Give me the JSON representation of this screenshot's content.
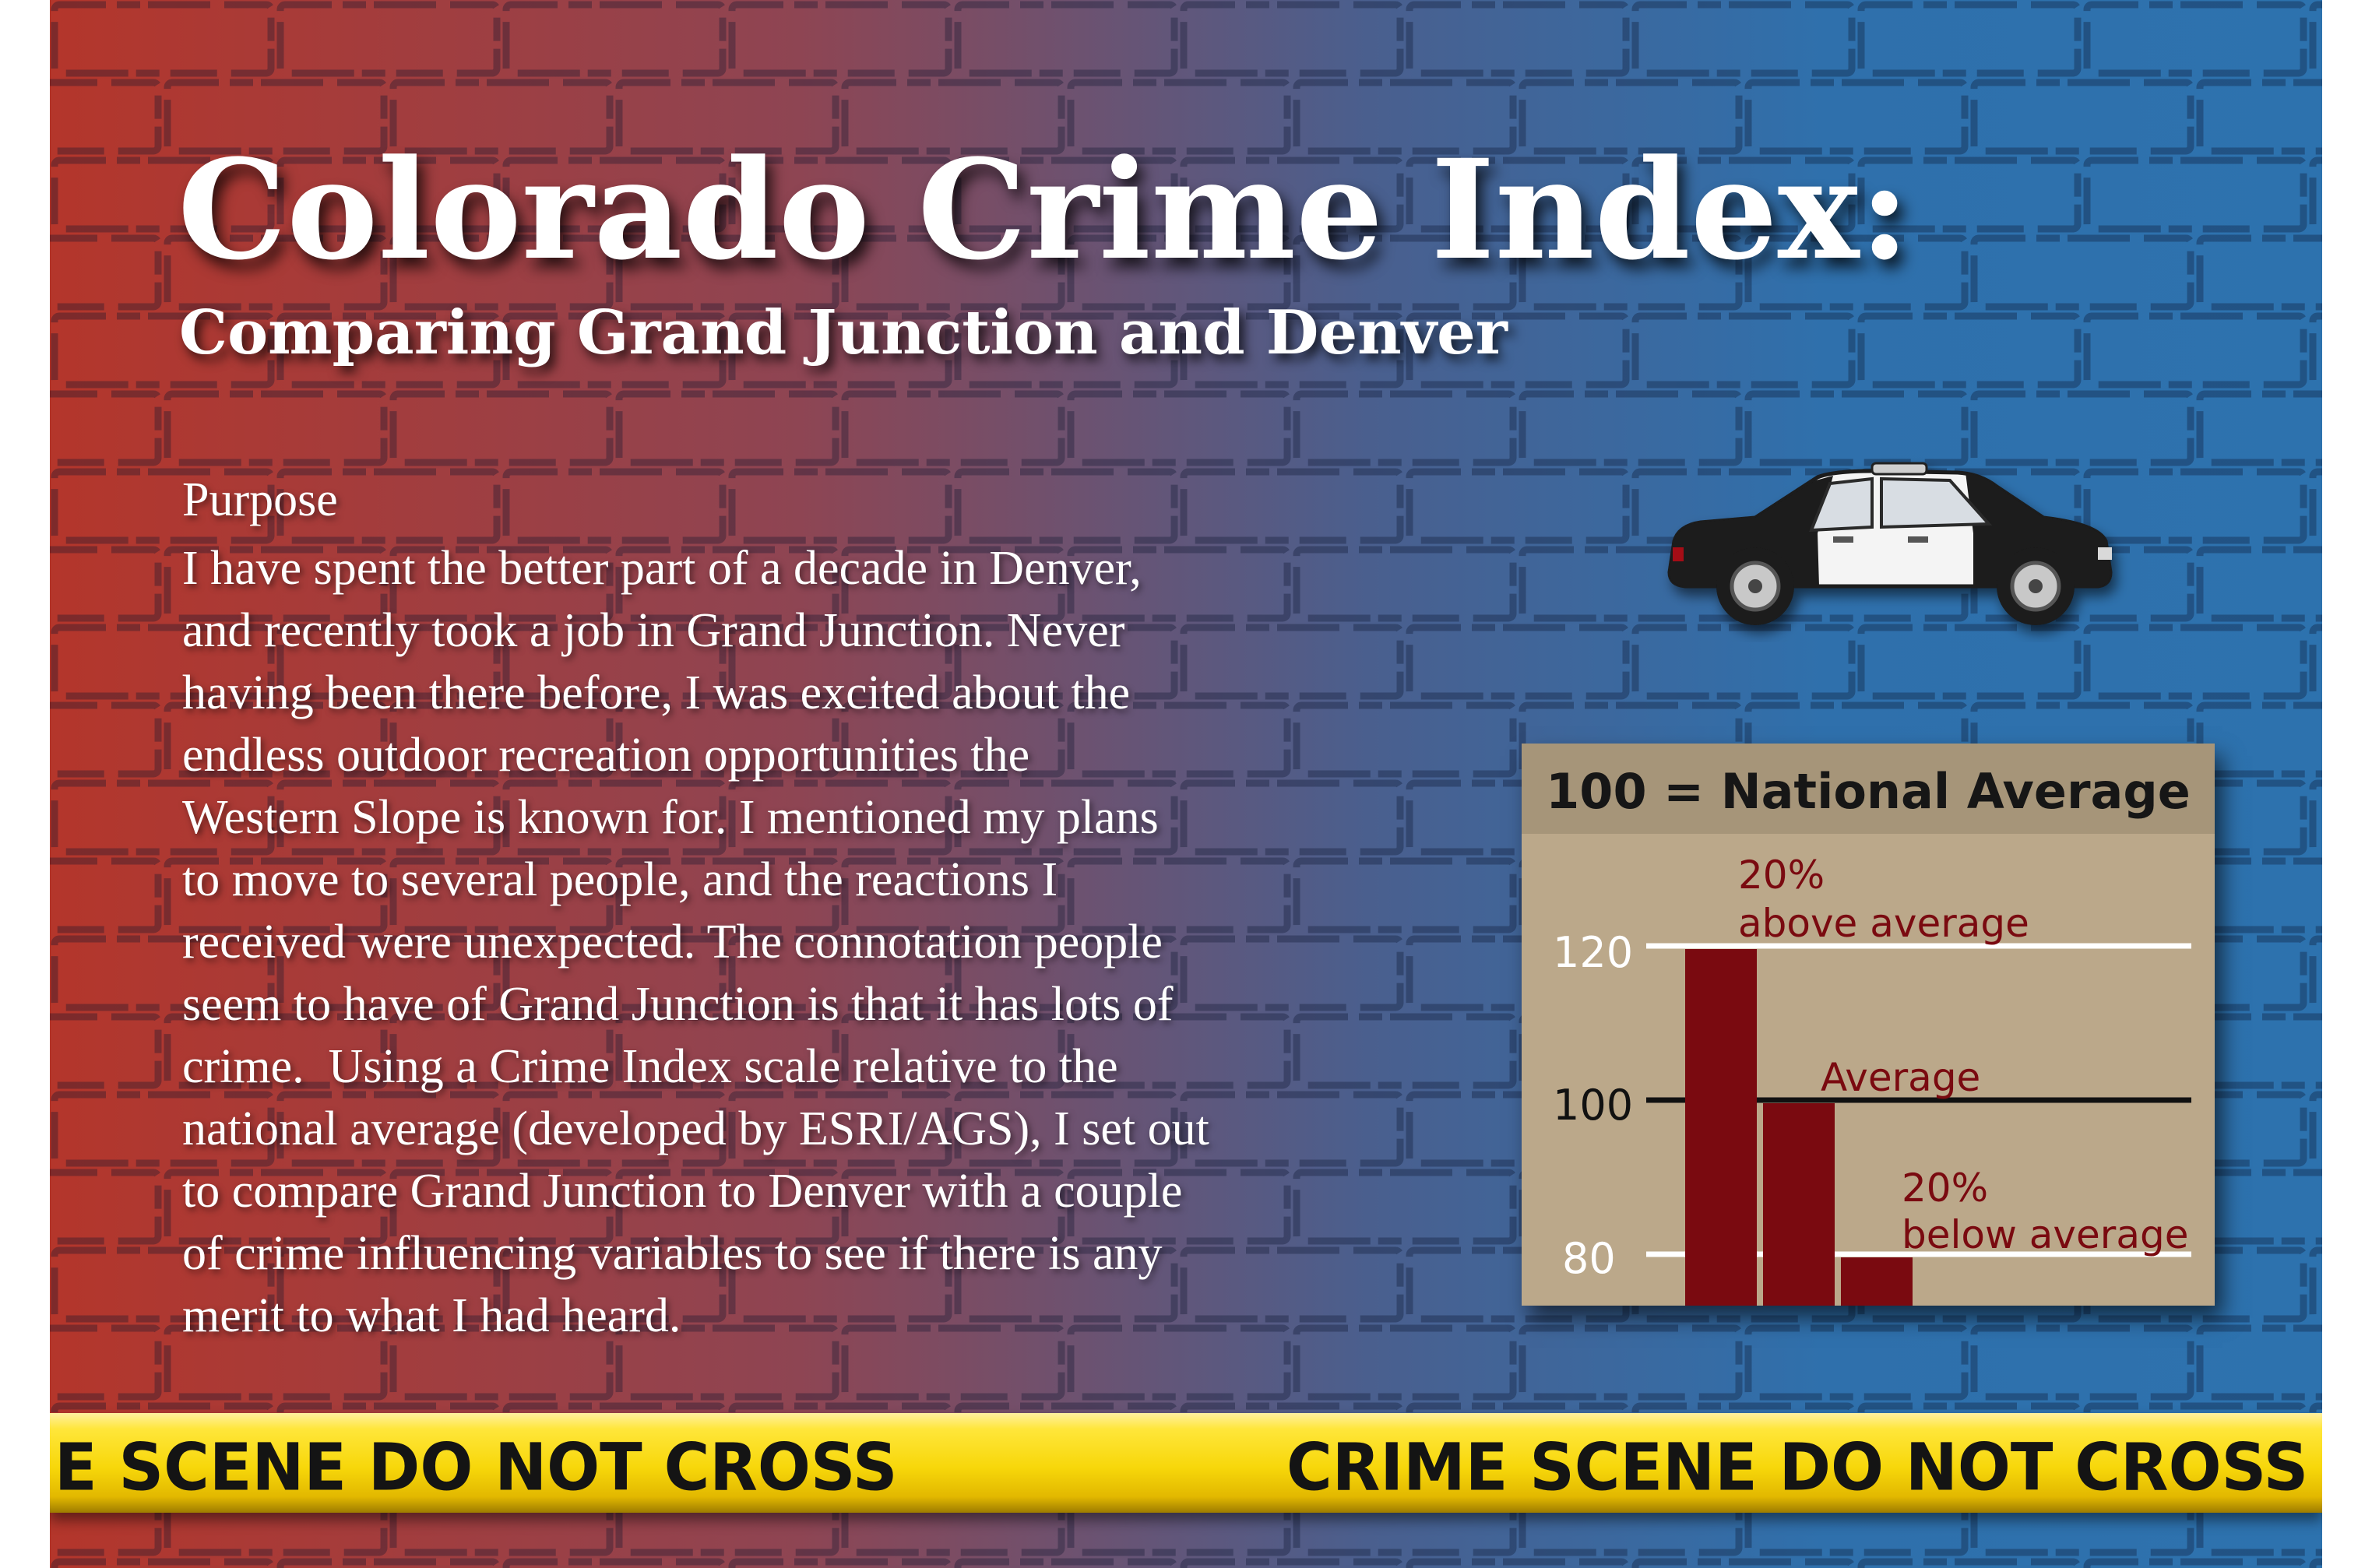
{
  "header": {
    "title": "Colorado Crime Index:",
    "subtitle": "Comparing Grand Junction and Denver"
  },
  "purpose": {
    "heading": "Purpose",
    "lines": [
      "I have spent the better part of a decade in Denver,",
      "and recently took a job in Grand Junction. Never",
      "having been there before, I was excited about the",
      "endless outdoor recreation opportunities the",
      "Western Slope is known for. I mentioned my plans",
      "to move to several people, and the reactions I",
      "received were unexpected. The connotation people",
      "seem to have of Grand Junction is that it has lots of",
      "crime.  Using a Crime Index scale relative to the",
      "national average (developed by ESRI/AGS), I set out",
      "to compare Grand Junction to Denver with a couple",
      "of crime influencing variables to see if there is any",
      "merit to what I had heard."
    ]
  },
  "index_legend": {
    "title": "100 = National Average",
    "ticks": [
      "120",
      "100",
      "80"
    ],
    "labels": [
      {
        "line1": "20%",
        "line2": "above average"
      },
      {
        "line1": "Average",
        "line2": ""
      },
      {
        "line1": "20%",
        "line2": "below average"
      }
    ],
    "bar_values": [
      120,
      100,
      80
    ],
    "reference_values": [
      120,
      100,
      80
    ],
    "colors": {
      "bar": "#7a0a10",
      "label": "#7a0a10",
      "reference_line_light": "#ffffff",
      "reference_line_average": "#111111"
    }
  },
  "tape": {
    "left_text": "E SCENE DO NOT CROSS",
    "right_text": "CRIME SCENE DO NOT CROSS"
  },
  "decor": {
    "car_icon": "police-car-icon",
    "background": "brick-wall-texture",
    "colors": {
      "gradient_left": "#b4362b",
      "gradient_mid": "#8e4553",
      "gradient_right": "#2d72ae",
      "tape_yellow": "#f7d70a",
      "title_text": "#ffffff"
    }
  }
}
